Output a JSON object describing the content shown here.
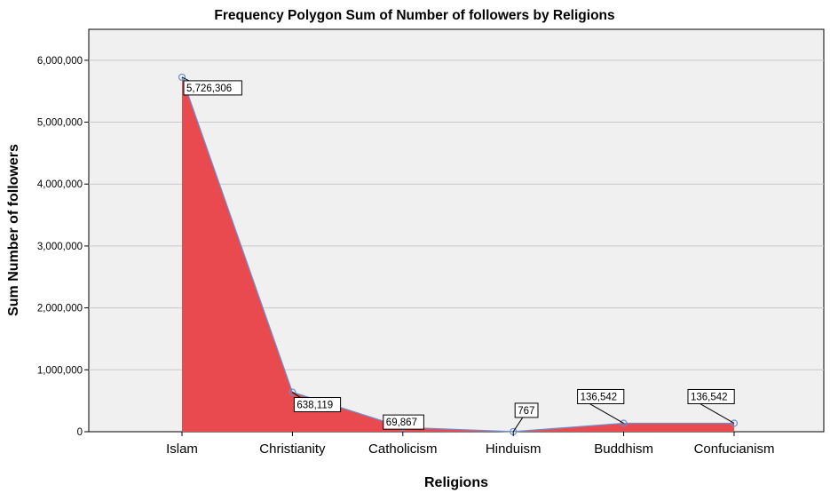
{
  "chart_data": {
    "type": "area",
    "title": "Frequency Polygon Sum of Number of followers by Religions",
    "xlabel": "Religions",
    "ylabel": "Sum Number of followers",
    "categories": [
      "Islam",
      "Christianity",
      "Catholicism",
      "Hinduism",
      "Buddhism",
      "Confucianism"
    ],
    "values": [
      5726306,
      638119,
      69867,
      767,
      136542,
      136542
    ],
    "data_labels": [
      "5,726,306",
      "638,119",
      "69,867",
      "767",
      "136,542",
      "136,542"
    ],
    "ylim": [
      0,
      6500000
    ],
    "yticks": [
      0,
      1000000,
      2000000,
      3000000,
      4000000,
      5000000,
      6000000
    ],
    "ytick_labels": [
      "0",
      "1,000,000",
      "2,000,000",
      "3,000,000",
      "4,000,000",
      "5,000,000",
      "6,000,000"
    ],
    "grid": true,
    "legend": "none",
    "colors": {
      "fill": "#e84a50",
      "line": "#6d8fc7",
      "plot_background": "#f0f0f0",
      "grid": "#c8c8c8",
      "axis": "#000000"
    }
  }
}
